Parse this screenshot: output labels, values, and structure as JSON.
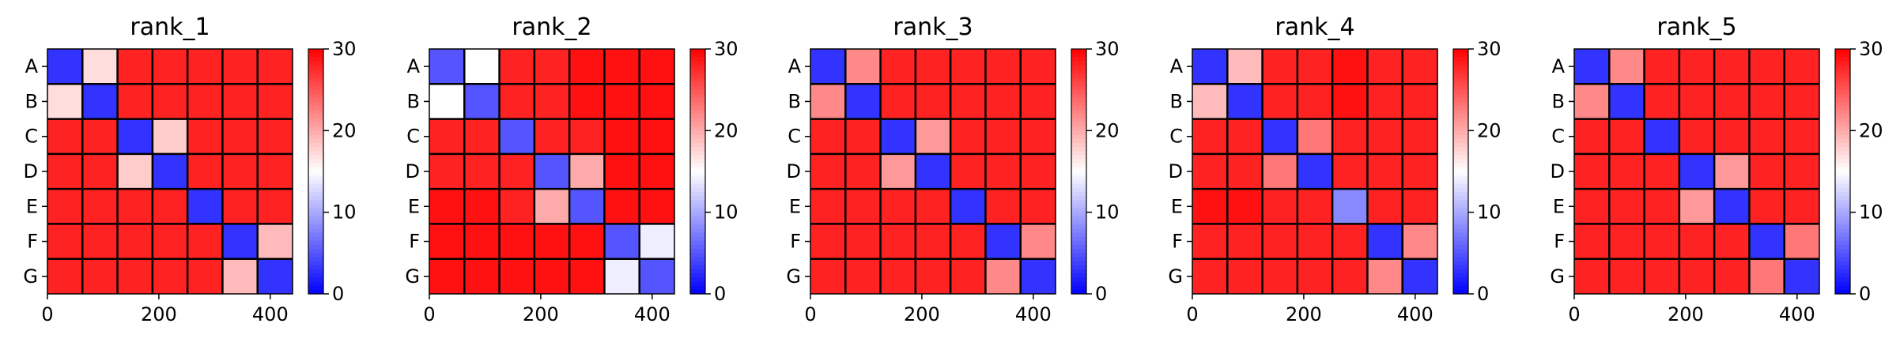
{
  "chart_data": [
    {
      "type": "heatmap",
      "title": "rank_1",
      "row_labels": [
        "A",
        "B",
        "C",
        "D",
        "E",
        "F",
        "G"
      ],
      "x_ticks": [
        0,
        200,
        400
      ],
      "xlim": [
        0,
        440
      ],
      "colorbar": {
        "min": 0,
        "max": 30,
        "ticks": [
          0,
          10,
          20,
          30
        ],
        "colormap": "bwr"
      },
      "block_values": [
        [
          3,
          17,
          28,
          28,
          28,
          28,
          28
        ],
        [
          17,
          3,
          28,
          28,
          28,
          28,
          28
        ],
        [
          28,
          28,
          3,
          18,
          28,
          28,
          28
        ],
        [
          28,
          28,
          18,
          3,
          28,
          28,
          28
        ],
        [
          28,
          28,
          28,
          28,
          3,
          28,
          28
        ],
        [
          28,
          28,
          28,
          28,
          28,
          3,
          19
        ],
        [
          28,
          28,
          28,
          28,
          28,
          19,
          3
        ]
      ]
    },
    {
      "type": "heatmap",
      "title": "rank_2",
      "row_labels": [
        "A",
        "B",
        "C",
        "D",
        "E",
        "F",
        "G"
      ],
      "x_ticks": [
        0,
        200,
        400
      ],
      "xlim": [
        0,
        440
      ],
      "colorbar": {
        "min": 0,
        "max": 30,
        "ticks": [
          0,
          10,
          20,
          30
        ],
        "colormap": "bwr"
      },
      "block_values": [
        [
          5,
          15,
          28,
          28,
          29,
          29,
          29
        ],
        [
          15,
          5,
          28,
          28,
          29,
          29,
          29
        ],
        [
          28,
          28,
          5,
          28,
          28,
          29,
          29
        ],
        [
          28,
          28,
          28,
          5,
          20,
          29,
          29
        ],
        [
          29,
          29,
          28,
          20,
          5,
          29,
          29
        ],
        [
          29,
          29,
          29,
          29,
          29,
          5,
          14
        ],
        [
          29,
          29,
          29,
          29,
          29,
          14,
          5
        ]
      ]
    },
    {
      "type": "heatmap",
      "title": "rank_3",
      "row_labels": [
        "A",
        "B",
        "C",
        "D",
        "E",
        "F",
        "G"
      ],
      "x_ticks": [
        0,
        200,
        400
      ],
      "xlim": [
        0,
        440
      ],
      "colorbar": {
        "min": 0,
        "max": 30,
        "ticks": [
          0,
          10,
          20,
          30
        ],
        "colormap": "bwr"
      },
      "block_values": [
        [
          3,
          22,
          28,
          28,
          28,
          28,
          28
        ],
        [
          22,
          3,
          28,
          28,
          28,
          28,
          28
        ],
        [
          28,
          28,
          3,
          21,
          28,
          28,
          28
        ],
        [
          28,
          28,
          21,
          3,
          28,
          28,
          28
        ],
        [
          28,
          28,
          28,
          28,
          3,
          28,
          28
        ],
        [
          28,
          28,
          28,
          28,
          28,
          3,
          22
        ],
        [
          28,
          28,
          28,
          28,
          28,
          22,
          3
        ]
      ]
    },
    {
      "type": "heatmap",
      "title": "rank_4",
      "row_labels": [
        "A",
        "B",
        "C",
        "D",
        "E",
        "F",
        "G"
      ],
      "x_ticks": [
        0,
        200,
        400
      ],
      "xlim": [
        0,
        440
      ],
      "colorbar": {
        "min": 0,
        "max": 30,
        "ticks": [
          0,
          10,
          20,
          30
        ],
        "colormap": "bwr"
      },
      "block_values": [
        [
          3,
          19,
          28,
          28,
          29,
          28,
          28
        ],
        [
          19,
          3,
          28,
          28,
          29,
          28,
          28
        ],
        [
          28,
          28,
          3,
          23,
          28,
          28,
          28
        ],
        [
          28,
          28,
          23,
          3,
          28,
          28,
          28
        ],
        [
          29,
          29,
          28,
          28,
          8,
          28,
          28
        ],
        [
          28,
          28,
          28,
          28,
          28,
          3,
          22
        ],
        [
          28,
          28,
          28,
          28,
          28,
          22,
          3
        ]
      ]
    },
    {
      "type": "heatmap",
      "title": "rank_5",
      "row_labels": [
        "A",
        "B",
        "C",
        "D",
        "E",
        "F",
        "G"
      ],
      "x_ticks": [
        0,
        200,
        400
      ],
      "xlim": [
        0,
        440
      ],
      "colorbar": {
        "min": 0,
        "max": 30,
        "ticks": [
          0,
          10,
          20,
          30
        ],
        "colormap": "bwr"
      },
      "block_values": [
        [
          3,
          22,
          28,
          28,
          28,
          28,
          28
        ],
        [
          22,
          3,
          28,
          28,
          28,
          28,
          28
        ],
        [
          28,
          28,
          3,
          28,
          28,
          28,
          28
        ],
        [
          28,
          28,
          28,
          3,
          21,
          28,
          28
        ],
        [
          28,
          28,
          28,
          21,
          3,
          28,
          28
        ],
        [
          28,
          28,
          28,
          28,
          28,
          3,
          23
        ],
        [
          28,
          28,
          28,
          28,
          28,
          23,
          3
        ]
      ]
    }
  ]
}
